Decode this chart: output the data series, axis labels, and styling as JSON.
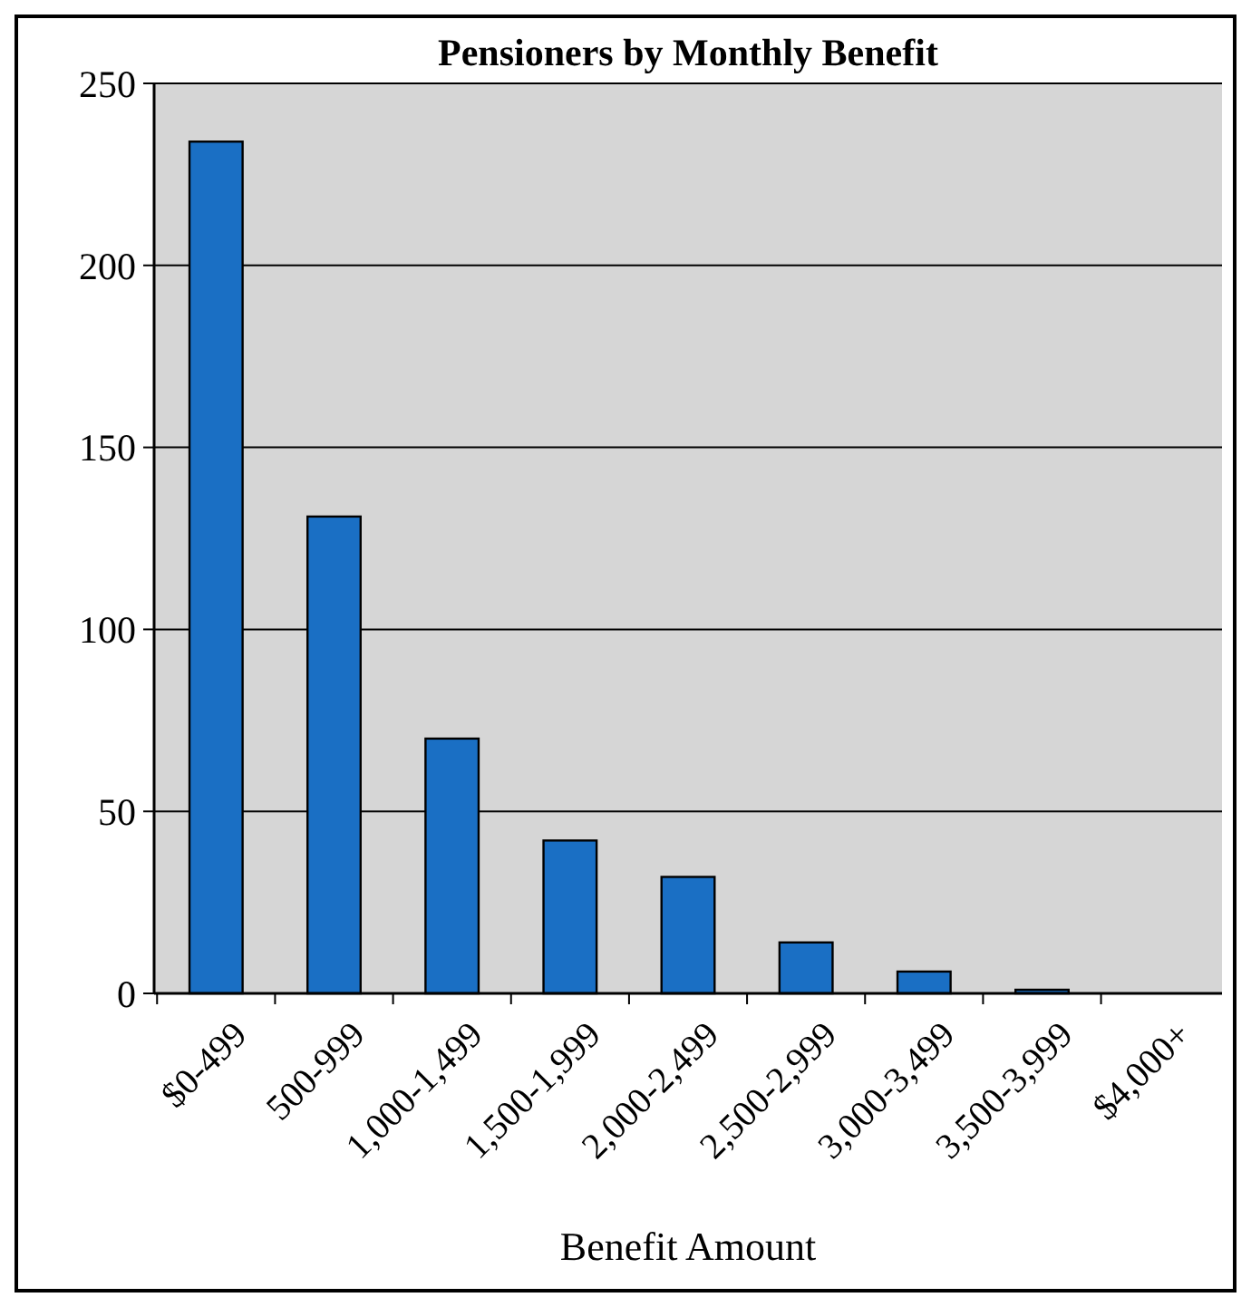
{
  "chart_data": {
    "type": "bar",
    "title": "Pensioners by Monthly Benefit",
    "xlabel": "Benefit Amount",
    "categories": [
      "$0-499",
      "500-999",
      "1,000-1,499",
      "1,500-1,999",
      "2,000-2,499",
      "2,500-2,999",
      "3,000-3,499",
      "3,500-3,999",
      "$4,000+"
    ],
    "values": [
      234,
      131,
      70,
      42,
      32,
      14,
      6,
      1,
      0
    ],
    "color": "#1a6fc4",
    "ylim": [
      0,
      250
    ],
    "yticks": [
      0,
      50,
      100,
      150,
      200,
      250
    ],
    "grid": "y"
  }
}
